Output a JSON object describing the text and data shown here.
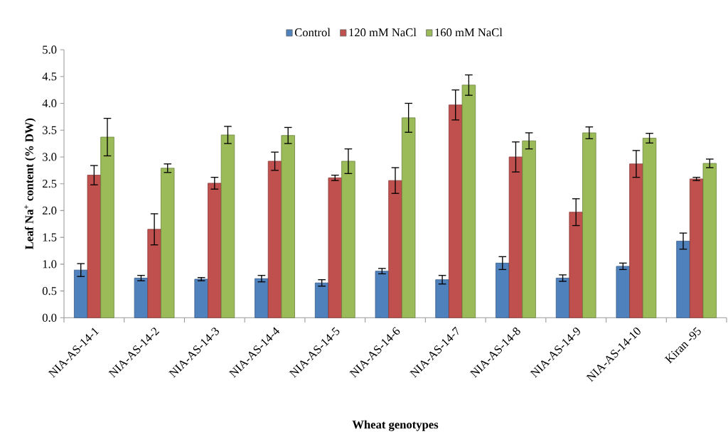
{
  "chart_data": {
    "type": "bar",
    "xlabel": "Wheat  genotypes",
    "ylabel": "Leaf Na$^{+}$ content (% DW)",
    "categories": [
      "NIA-AS-14-1",
      "NIA-AS-14-2",
      "NIA-AS-14-3",
      "NIA-AS-14-4",
      "NIA-AS-14-5",
      "NIA-AS-14-6",
      "NIA-AS-14-7",
      "NIA-AS-14-8",
      "NIA-AS-14-9",
      "NIA-AS-14-10",
      "Kiran -95"
    ],
    "series": [
      {
        "name": "Control",
        "color": "#4f81bd",
        "values": [
          0.89,
          0.74,
          0.72,
          0.73,
          0.65,
          0.87,
          0.71,
          1.02,
          0.74,
          0.96,
          1.43
        ],
        "errors": [
          0.12,
          0.05,
          0.03,
          0.06,
          0.06,
          0.05,
          0.08,
          0.12,
          0.06,
          0.06,
          0.15
        ]
      },
      {
        "name": "120 mM NaCl",
        "color": "#c0504d",
        "values": [
          2.66,
          1.65,
          2.51,
          2.92,
          2.61,
          2.56,
          3.97,
          3.0,
          1.97,
          2.87,
          2.59
        ],
        "errors": [
          0.18,
          0.29,
          0.11,
          0.17,
          0.05,
          0.24,
          0.28,
          0.28,
          0.25,
          0.25,
          0.03
        ]
      },
      {
        "name": "160 mM NaCl",
        "color": "#9bbb59",
        "values": [
          3.37,
          2.79,
          3.41,
          3.4,
          2.92,
          3.73,
          4.34,
          3.3,
          3.45,
          3.35,
          2.88
        ],
        "errors": [
          0.35,
          0.08,
          0.16,
          0.15,
          0.23,
          0.27,
          0.19,
          0.15,
          0.11,
          0.09,
          0.08
        ]
      }
    ],
    "ylim": [
      0,
      5
    ],
    "yticks": [
      {
        "value": 0,
        "label": "0.0"
      },
      {
        "value": 0.5,
        "label": "0.5"
      },
      {
        "value": 1,
        "label": "1.0"
      },
      {
        "value": 1.5,
        "label": "1.5"
      },
      {
        "value": 2,
        "label": "2.0"
      },
      {
        "value": 2.5,
        "label": "2.5"
      },
      {
        "value": 3,
        "label": "3.0"
      },
      {
        "value": 3.5,
        "label": "3.5"
      },
      {
        "value": 4,
        "label": "4.0"
      },
      {
        "value": 4.5,
        "label": "4.5"
      },
      {
        "value": 5,
        "label": "5.0"
      }
    ],
    "legend": "top"
  }
}
